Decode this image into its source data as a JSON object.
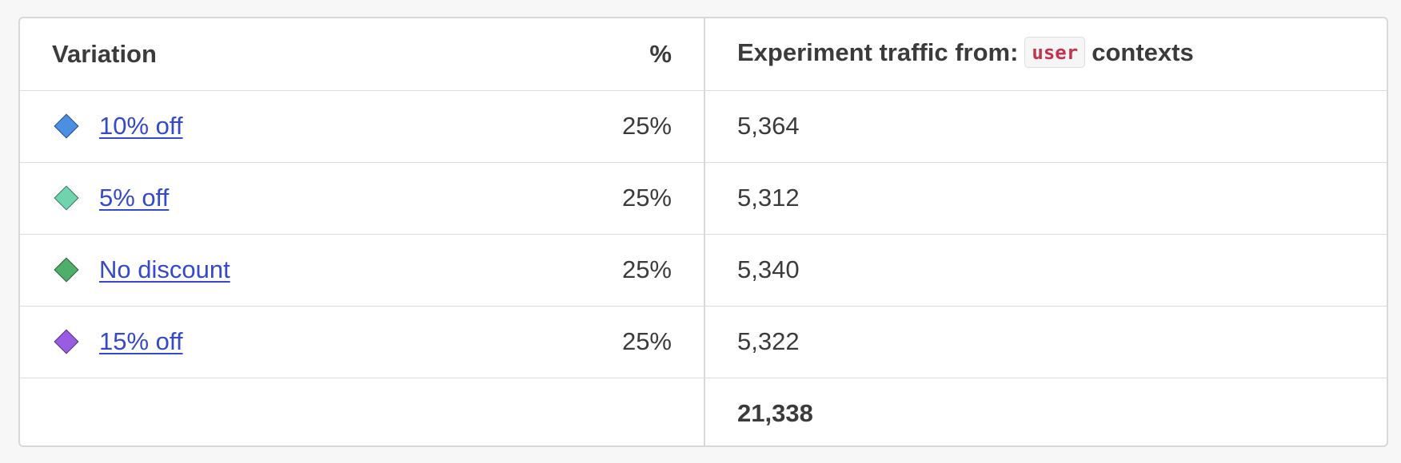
{
  "table": {
    "header": {
      "variation": "Variation",
      "percent": "%",
      "traffic_prefix": "Experiment traffic from:",
      "context_kind": "user",
      "traffic_suffix": "contexts"
    },
    "rows": [
      {
        "name": "10% off",
        "percent": "25%",
        "traffic": "5,364",
        "color": "#4a8fe2"
      },
      {
        "name": "5% off",
        "percent": "25%",
        "traffic": "5,312",
        "color": "#6fd3ad"
      },
      {
        "name": "No discount",
        "percent": "25%",
        "traffic": "5,340",
        "color": "#4fae6a"
      },
      {
        "name": "15% off",
        "percent": "25%",
        "traffic": "5,322",
        "color": "#9a5ce0"
      }
    ],
    "total": "21,338"
  },
  "icons": {
    "variation_marker": "diamond-icon"
  }
}
